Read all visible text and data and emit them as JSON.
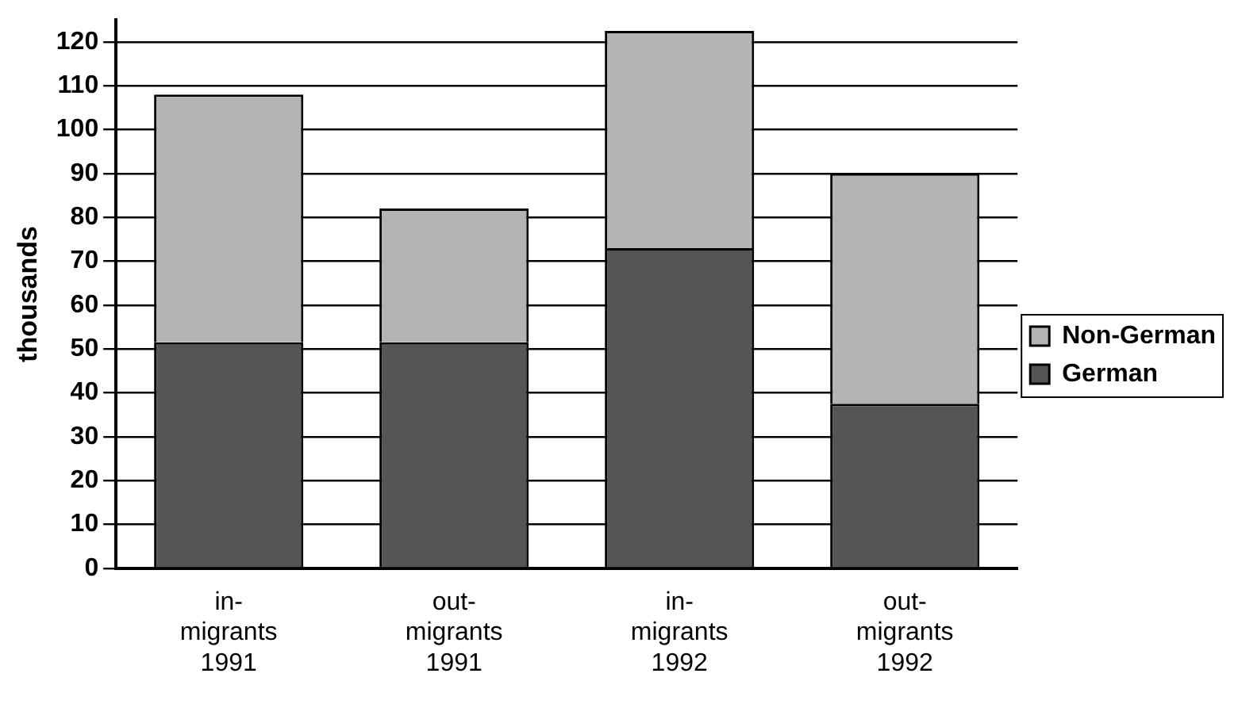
{
  "chart_data": {
    "type": "bar",
    "ylabel": "thousands",
    "categories": [
      "in-migrants 1991",
      "out-migrants 1991",
      "in-migrants 1992",
      "out-migrants 1992"
    ],
    "series": [
      {
        "name": "German",
        "color": "#555555",
        "values": [
          51.5,
          51.5,
          73,
          37.5
        ]
      },
      {
        "name": "Non-German",
        "color": "#b4b4b4",
        "values": [
          56.5,
          30.5,
          49.5,
          52.5
        ]
      }
    ],
    "stacked": true,
    "ylim": [
      0,
      125
    ],
    "yticks": [
      0,
      10,
      20,
      30,
      40,
      50,
      60,
      70,
      80,
      90,
      100,
      110,
      120
    ],
    "grid": "y",
    "legend": "right"
  }
}
